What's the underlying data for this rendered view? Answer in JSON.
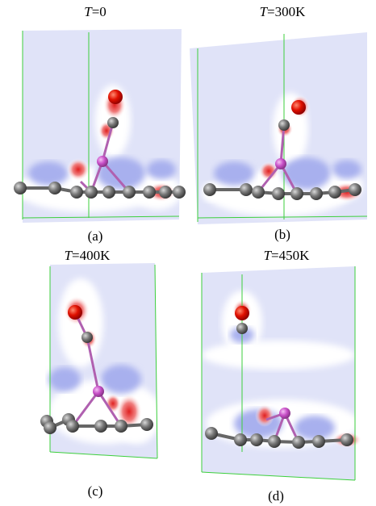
{
  "panels": [
    {
      "title": {
        "symbol": "T",
        "value": "=0"
      },
      "label": "(a)"
    },
    {
      "title": {
        "symbol": "T",
        "value": "=300K"
      },
      "label": "(b)"
    },
    {
      "title": {
        "symbol": "T",
        "value": "=400K"
      },
      "label": "(c)"
    },
    {
      "title": {
        "symbol": "T",
        "value": "=450K"
      },
      "label": "(d)"
    }
  ]
}
